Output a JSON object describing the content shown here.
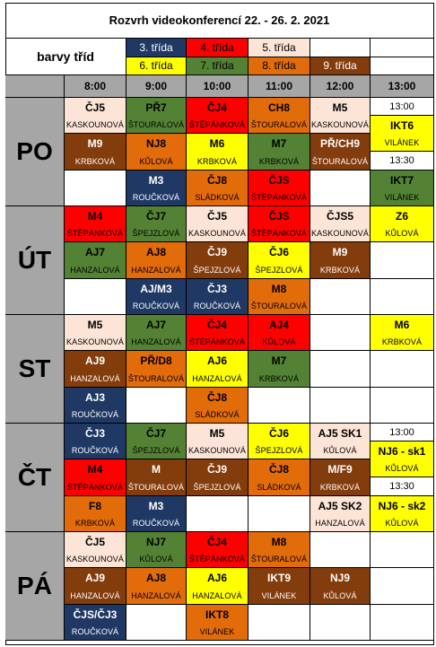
{
  "title": "Rozvrh videokonferencí 22. - 26. 2. 2021",
  "legend": {
    "label": "barvy tříd",
    "items": [
      {
        "text": "3. třída",
        "bg": "#1f3864",
        "fg": "#ffffff"
      },
      {
        "text": "4. třída",
        "bg": "#ff0000",
        "fg": "#000000"
      },
      {
        "text": "5. třída",
        "bg": "#fce4d6",
        "fg": "#000000"
      },
      {
        "text": "6. třída",
        "bg": "#ffff00",
        "fg": "#000000"
      },
      {
        "text": "7. třída",
        "bg": "#548235",
        "fg": "#000000"
      },
      {
        "text": "8. třída",
        "bg": "#e26b0a",
        "fg": "#000000"
      },
      {
        "text": "9. třída",
        "bg": "#833c0c",
        "fg": "#ffffff"
      }
    ]
  },
  "times": [
    "8:00",
    "9:00",
    "10:00",
    "11:00",
    "12:00",
    "13:00"
  ],
  "days": [
    {
      "name": "PO",
      "rows": [
        [
          {
            "s": "ČJ5",
            "t": "KASKOUNOVÁ",
            "c": "5"
          },
          {
            "s": "PŘ7",
            "t": "ŠTOURALOVÁ",
            "c": "7"
          },
          {
            "s": "ČJ4",
            "t": "ŠTĚPÁNKOVÁ",
            "c": "4"
          },
          {
            "s": "CH8",
            "t": "ŠTOURALOVÁ",
            "c": "8"
          },
          {
            "s": "M5",
            "t": "KASKOUNOVÁ",
            "c": "5"
          },
          {
            "x": "13:00"
          }
        ],
        [
          {
            "s": "M9",
            "t": "KRBKOVÁ",
            "c": "9"
          },
          {
            "s": "NJ8",
            "t": "KŮLOVÁ",
            "c": "8"
          },
          {
            "s": "M6",
            "t": "KRBKOVÁ",
            "c": "6"
          },
          {
            "s": "M7",
            "t": "KRBKOVÁ",
            "c": "7"
          },
          {
            "s": "PŘ/CH9",
            "t": "ŠTOURALOVÁ",
            "c": "9"
          },
          null
        ],
        [
          null,
          {
            "s": "M3",
            "t": "ROUČKOVÁ",
            "c": "3"
          },
          {
            "s": "ČJ8",
            "t": "SLÁDKOVÁ",
            "c": "8"
          },
          {
            "s": "ČJS",
            "t": "ŠTĚPÁNKOVÁ",
            "c": "4"
          },
          null,
          {
            "s": "IKT7",
            "t": "VILÁNEK",
            "c": "7"
          }
        ]
      ],
      "split": {
        "r0": {
          "s": "IKT6",
          "t": "VILÁNEK",
          "c": "6"
        },
        "r1": {
          "x": "13:30"
        }
      }
    },
    {
      "name": "ÚT",
      "rows": [
        [
          {
            "s": "M4",
            "t": "ŠTĚPÁNKOVÁ",
            "c": "4"
          },
          {
            "s": "ČJ7",
            "t": "ŠPEJZLOVÁ",
            "c": "7"
          },
          {
            "s": "ČJ5",
            "t": "KASKOUNOVÁ",
            "c": "5"
          },
          {
            "s": "ČJS",
            "t": "ŠTĚPÁNKOVÁ",
            "c": "4"
          },
          {
            "s": "ČJS5",
            "t": "KASKOUNOVÁ",
            "c": "5"
          },
          {
            "s": "Z6",
            "t": "KŮLOVÁ",
            "c": "6"
          }
        ],
        [
          {
            "s": "AJ7",
            "t": "HANZALOVÁ",
            "c": "7"
          },
          {
            "s": "AJ8",
            "t": "HANZALOVÁ",
            "c": "8"
          },
          {
            "s": "ČJ9",
            "t": "ŠPEJZLOVÁ",
            "c": "9"
          },
          {
            "s": "ČJ6",
            "t": "ŠPEJZLOVÁ",
            "c": "6"
          },
          {
            "s": "M9",
            "t": "KRBKOVÁ",
            "c": "9"
          },
          null
        ],
        [
          null,
          {
            "s": "AJ/M3",
            "t": "ROUČKOVÁ",
            "c": "3"
          },
          {
            "s": "ČJ3",
            "t": "ROUČKOVÁ",
            "c": "3"
          },
          {
            "s": "M8",
            "t": "ŠTOURALOVÁ",
            "c": "8"
          },
          null,
          null
        ]
      ]
    },
    {
      "name": "ST",
      "rows": [
        [
          {
            "s": "M5",
            "t": "KASKOUNOVÁ",
            "c": "5"
          },
          {
            "s": "AJ7",
            "t": "HANZALOVÁ",
            "c": "7"
          },
          {
            "s": "ČJ4",
            "t": "ŠTĚPÁNKOVÁ",
            "c": "4"
          },
          {
            "s": "AJ4",
            "t": "KŮLOVÁ",
            "c": "4"
          },
          null,
          {
            "s": "M6",
            "t": "KRBKOVÁ",
            "c": "6"
          }
        ],
        [
          {
            "s": "AJ9",
            "t": "HANZALOVÁ",
            "c": "9"
          },
          {
            "s": "PŘ/D8",
            "t": "ŠTOURALOVÁ",
            "c": "8"
          },
          {
            "s": "AJ6",
            "t": "HANZALOVÁ",
            "c": "6"
          },
          {
            "s": "M7",
            "t": "KRBKOVÁ",
            "c": "7"
          },
          null,
          null
        ],
        [
          {
            "s": "AJ3",
            "t": "ROUČKOVÁ",
            "c": "3"
          },
          null,
          {
            "s": "ČJ8",
            "t": "SLÁDKOVÁ",
            "c": "8"
          },
          null,
          null,
          null
        ]
      ]
    },
    {
      "name": "ČT",
      "rows": [
        [
          {
            "s": "ČJ3",
            "t": "ROUČKOVÁ",
            "c": "3"
          },
          {
            "s": "ČJ7",
            "t": "ŠPEJZLOVÁ",
            "c": "7"
          },
          {
            "s": "M5",
            "t": "KASKOUNOVÁ",
            "c": "5"
          },
          {
            "s": "ČJ6",
            "t": "ŠPEJZLOVÁ",
            "c": "6"
          },
          {
            "s": "AJ5 SK1",
            "t": "KŮLOVÁ",
            "c": "5"
          },
          {
            "x": "13:00"
          }
        ],
        [
          {
            "s": "M4",
            "t": "ŠTĚPÁNKOVÁ",
            "c": "4"
          },
          {
            "s": "M",
            "t": "ŠTOURALOVÁ",
            "c": "9"
          },
          {
            "s": "ČJ9",
            "t": "ŠPEJZLOVÁ",
            "c": "9"
          },
          {
            "s": "ČJ8",
            "t": "SLÁDKOVÁ",
            "c": "8"
          },
          {
            "s": "M/F9",
            "t": "KRBKOVÁ",
            "c": "9"
          },
          null
        ],
        [
          {
            "s": "F8",
            "t": "KRBKOVÁ",
            "c": "8"
          },
          {
            "s": "M3",
            "t": "ROUČKOVÁ",
            "c": "3"
          },
          null,
          null,
          {
            "s": "AJ5 SK2",
            "t": "HANZALOVÁ",
            "c": "5"
          },
          null
        ]
      ],
      "split": {
        "r0": {
          "s": "NJ6 - sk1",
          "t": "KŮLOVÁ",
          "c": "6"
        },
        "r1": {
          "x": "13:30"
        },
        "r2": {
          "s": "NJ6 - sk2",
          "t": "KŮLOVÁ",
          "c": "6"
        }
      }
    },
    {
      "name": "PÁ",
      "rows": [
        [
          {
            "s": "ČJ5",
            "t": "KASKOUNOVÁ",
            "c": "5"
          },
          {
            "s": "NJ7",
            "t": "KŮLOVÁ",
            "c": "7"
          },
          {
            "s": "ČJ4",
            "t": "ŠTĚPÁNKOVÁ",
            "c": "4"
          },
          {
            "s": "M8",
            "t": "ŠTOURALOVÁ",
            "c": "8"
          },
          null,
          null
        ],
        [
          {
            "s": "AJ9",
            "t": "HANZALOVÁ",
            "c": "9"
          },
          {
            "s": "AJ8",
            "t": "HANZALOVÁ",
            "c": "8"
          },
          {
            "s": "AJ6",
            "t": "HANZALOVÁ",
            "c": "6"
          },
          {
            "s": "IKT9",
            "t": "VILÁNEK",
            "c": "9"
          },
          {
            "s": "NJ9",
            "t": "KŮLOVÁ",
            "c": "9"
          },
          null
        ],
        [
          {
            "s": "ČJS/ČJ3",
            "t": "ROUČKOVÁ",
            "c": "3"
          },
          null,
          {
            "s": "IKT8",
            "t": "VILÁNEK",
            "c": "8"
          },
          null,
          null,
          null
        ]
      ]
    }
  ],
  "class_colors": {
    "3": {
      "bg": "#1f3864",
      "fg": "#ffffff"
    },
    "4": {
      "bg": "#ff0000",
      "fg": "#000000"
    },
    "5": {
      "bg": "#fce4d6",
      "fg": "#000000"
    },
    "6": {
      "bg": "#ffff00",
      "fg": "#000000"
    },
    "7": {
      "bg": "#548235",
      "fg": "#000000"
    },
    "8": {
      "bg": "#e26b0a",
      "fg": "#000000"
    },
    "9": {
      "bg": "#833c0c",
      "fg": "#ffffff"
    }
  }
}
